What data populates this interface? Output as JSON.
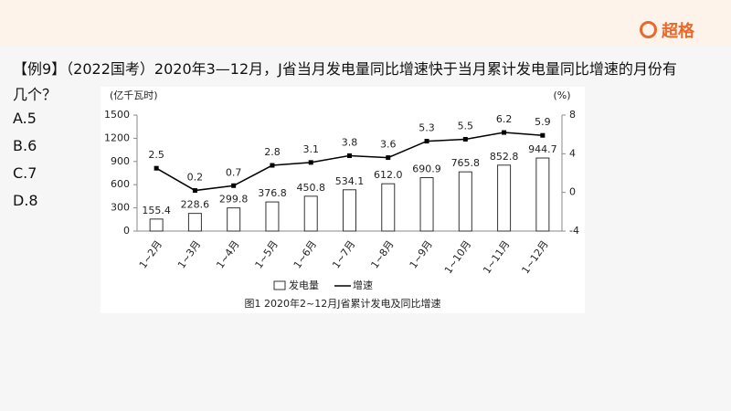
{
  "brand": "超格",
  "question": {
    "text": "【例9】（2022国考）2020年3—12月，J省当月发电量同比增速快于当月累计发电量同比增速的月份有几个？",
    "options": [
      "A.5",
      "B.6",
      "C.7",
      "D.8"
    ]
  },
  "chart_data": {
    "type": "combo",
    "caption": "图1  2020年2~12月J省累计发电及同比增速",
    "y_label": "(亿千瓦时)",
    "y2_label": "(%)",
    "categories": [
      "1~2月",
      "1~3月",
      "1~4月",
      "1~5月",
      "1~6月",
      "1~7月",
      "1~8月",
      "1~9月",
      "1~10月",
      "1~11月",
      "1~12月"
    ],
    "series": [
      {
        "name": "发电量",
        "type": "bar",
        "color": "#ffffff",
        "values": [
          155.4,
          228.6,
          299.8,
          376.8,
          450.8,
          534.1,
          612.0,
          690.9,
          765.8,
          852.8,
          944.7
        ],
        "value_labels": [
          "155.4",
          "228.6",
          "299.8",
          "376.8",
          "450.8",
          "534.1",
          "612.0",
          "690.9",
          "765.8",
          "852.8",
          "944.7"
        ]
      },
      {
        "name": "增速",
        "type": "line",
        "axis": "y2",
        "color": "#000000",
        "values": [
          2.5,
          0.2,
          0.7,
          2.8,
          3.1,
          3.8,
          3.6,
          5.3,
          5.5,
          6.2,
          5.9
        ]
      }
    ],
    "ylim": [
      0,
      1500
    ],
    "yticks": [
      0,
      300,
      600,
      900,
      1200,
      1500
    ],
    "y2lim": [
      -4,
      8
    ],
    "y2ticks": [
      -4,
      0,
      4,
      8
    ]
  }
}
